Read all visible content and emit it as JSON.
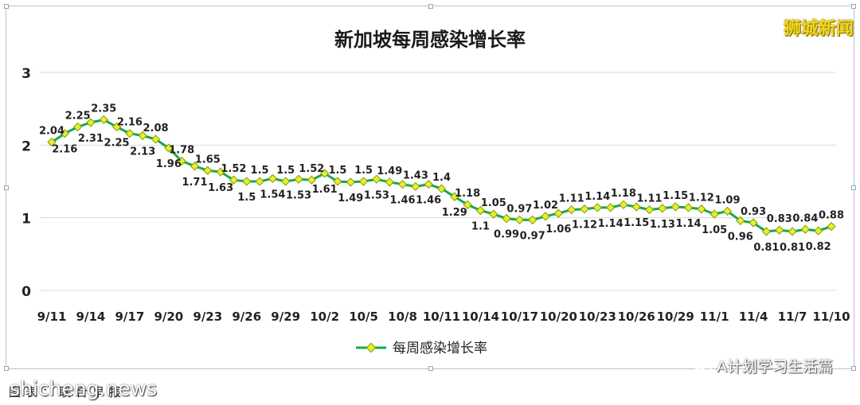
{
  "chart_data": {
    "type": "line",
    "title": "新加坡每周感染增长率",
    "x": [
      "9/11",
      "9/12",
      "9/13",
      "9/14",
      "9/15",
      "9/16",
      "9/17",
      "9/18",
      "9/19",
      "9/20",
      "9/21",
      "9/22",
      "9/23",
      "9/24",
      "9/25",
      "9/26",
      "9/27",
      "9/28",
      "9/29",
      "9/30",
      "10/1",
      "10/2",
      "10/3",
      "10/4",
      "10/5",
      "10/6",
      "10/7",
      "10/8",
      "10/9",
      "10/10",
      "10/11",
      "10/12",
      "10/13",
      "10/14",
      "10/15",
      "10/16",
      "10/17",
      "10/18",
      "10/19",
      "10/20",
      "10/21",
      "10/22",
      "10/23",
      "10/24",
      "10/25",
      "10/26",
      "10/27",
      "10/28",
      "10/29",
      "10/30",
      "10/31",
      "11/1",
      "11/2",
      "11/3",
      "11/4",
      "11/5",
      "11/6",
      "11/7",
      "11/8",
      "11/9",
      "11/10"
    ],
    "x_tick_labels": [
      "9/11",
      "9/14",
      "9/17",
      "9/20",
      "9/23",
      "9/26",
      "9/29",
      "10/2",
      "10/5",
      "10/8",
      "10/11",
      "10/14",
      "10/17",
      "10/20",
      "10/23",
      "10/26",
      "10/29",
      "11/1",
      "11/4",
      "11/7",
      "11/10"
    ],
    "series": [
      {
        "name": "每周感染增长率",
        "values": [
          2.04,
          2.16,
          2.25,
          2.31,
          2.35,
          2.25,
          2.16,
          2.13,
          2.08,
          1.96,
          1.78,
          1.71,
          1.65,
          1.63,
          1.52,
          1.5,
          1.5,
          1.54,
          1.5,
          1.53,
          1.52,
          1.61,
          1.5,
          1.49,
          1.5,
          1.53,
          1.49,
          1.46,
          1.43,
          1.46,
          1.4,
          1.29,
          1.18,
          1.1,
          1.05,
          0.99,
          0.97,
          0.97,
          1.02,
          1.06,
          1.11,
          1.12,
          1.14,
          1.14,
          1.18,
          1.15,
          1.11,
          1.13,
          1.15,
          1.14,
          1.12,
          1.05,
          1.09,
          0.96,
          0.93,
          0.81,
          0.83,
          0.81,
          0.84,
          0.82,
          0.88
        ]
      }
    ],
    "label_below": [
      false,
      true,
      false,
      true,
      false,
      true,
      false,
      true,
      false,
      true,
      false,
      true,
      false,
      true,
      false,
      true,
      false,
      true,
      false,
      true,
      false,
      true,
      false,
      true,
      false,
      true,
      false,
      true,
      false,
      true,
      false,
      true,
      false,
      true,
      false,
      true,
      false,
      true,
      false,
      true,
      false,
      true,
      false,
      true,
      false,
      true,
      false,
      true,
      false,
      true,
      false,
      true,
      false,
      true,
      false,
      true,
      false,
      true,
      false,
      true,
      false
    ],
    "ylim": [
      0,
      3
    ],
    "y_ticks": [
      0,
      1,
      2,
      3
    ],
    "grid": true,
    "legend": "bottom-center",
    "xlabel": "",
    "ylabel": ""
  },
  "colors": {
    "line": "#1aa84a",
    "marker": "#e8ef2b",
    "marker_edge": "#7f9a10",
    "grid": "#d9d9d9",
    "watermark": "#f2d51d"
  },
  "overlay": {
    "watermark": "狮城新闻",
    "wechat_account": "A计划学习生活篇",
    "wechat_icon": "wechat-icon",
    "site_stamp": "shicheng.news",
    "caption": "图表：联合早报"
  }
}
